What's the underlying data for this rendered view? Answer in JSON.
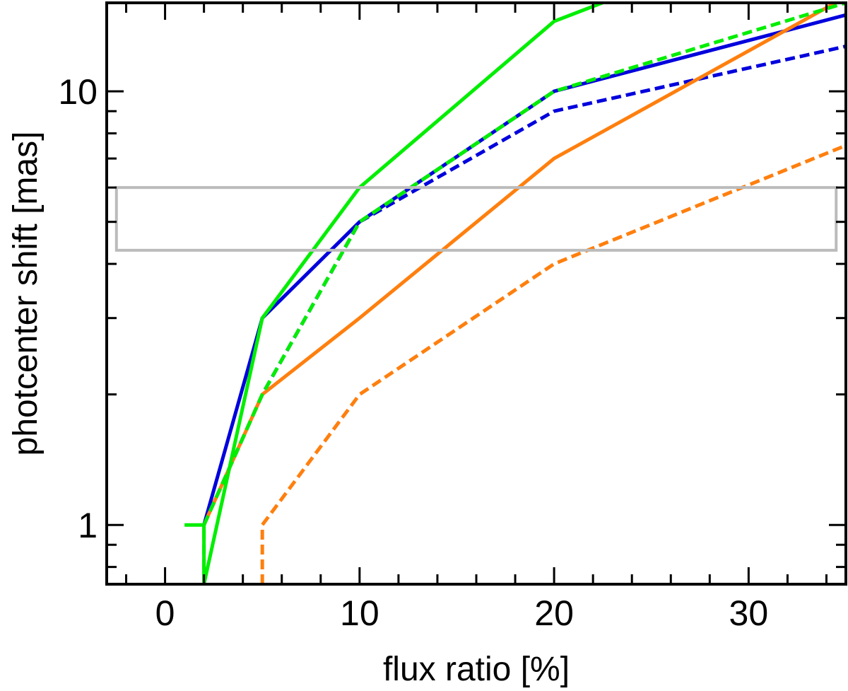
{
  "chart_data": {
    "type": "line",
    "title": "",
    "xlabel": "flux ratio [%]",
    "ylabel": "photcenter shift [mas]",
    "xlim": [
      -3,
      35
    ],
    "ylim": [
      0.73,
      16
    ],
    "yscale": "log",
    "grid": false,
    "legend": "none",
    "x_ticks": [
      0,
      10,
      20,
      30
    ],
    "x_tick_labels": [
      "0",
      "10",
      "20",
      "30"
    ],
    "y_ticks": [
      1,
      10
    ],
    "y_tick_labels": [
      "1",
      "10"
    ],
    "series": [
      {
        "color": "#0000dd",
        "dash": false,
        "x": [
          2,
          5,
          10,
          20,
          35
        ],
        "y": [
          1,
          3,
          5,
          10,
          15
        ]
      },
      {
        "color": "#0000dd",
        "dash": true,
        "x": [
          2,
          5,
          10,
          20,
          35
        ],
        "y": [
          1,
          2,
          5,
          9,
          12.7
        ]
      },
      {
        "color": "#ff7f0e",
        "dash": false,
        "x": [
          2,
          5,
          10,
          20,
          35
        ],
        "y": [
          1,
          2,
          3,
          7,
          16.5
        ]
      },
      {
        "color": "#ff7f0e",
        "dash": true,
        "x": [
          5,
          5,
          10,
          20,
          35
        ],
        "y": [
          0.73,
          1,
          2,
          4,
          7.5
        ]
      },
      {
        "color": "#00ee00",
        "dash": false,
        "x": [
          1,
          2,
          2,
          5,
          10,
          20,
          24
        ],
        "y": [
          1,
          1,
          0.73,
          3,
          6,
          14.5,
          17
        ]
      },
      {
        "color": "#00ee00",
        "dash": true,
        "x": [
          2,
          2,
          5,
          10,
          20,
          35
        ],
        "y": [
          0.73,
          1,
          2,
          5,
          10,
          16
        ]
      }
    ],
    "annotations": [
      {
        "type": "rectangle",
        "color": "#bbbbbb",
        "x": [
          -2.5,
          34.5
        ],
        "y": [
          4.3,
          6
        ]
      }
    ]
  }
}
